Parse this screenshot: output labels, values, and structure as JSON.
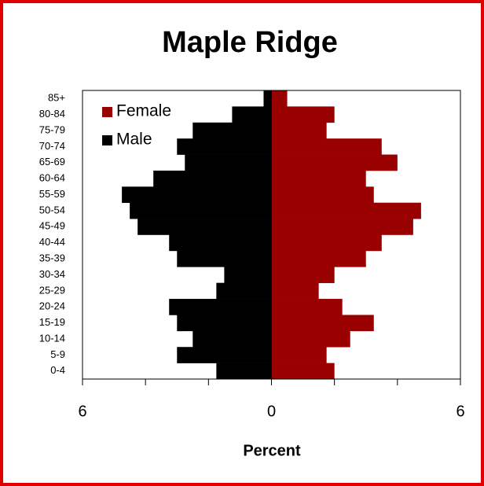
{
  "chart_data": {
    "type": "pyramid",
    "title": "Maple Ridge",
    "xlabel": "Percent",
    "categories": [
      "0-4",
      "5-9",
      "10-14",
      "15-19",
      "20-24",
      "25-29",
      "30-34",
      "35-39",
      "40-44",
      "45-49",
      "50-54",
      "55-59",
      "60-64",
      "65-69",
      "70-74",
      "75-79",
      "80-84",
      "85+"
    ],
    "series": [
      {
        "name": "Female",
        "color": "#990000",
        "side": "right",
        "values": [
          2.0,
          1.75,
          2.5,
          3.25,
          2.25,
          1.5,
          2.0,
          3.0,
          3.5,
          4.5,
          4.75,
          3.25,
          3.0,
          4.0,
          3.5,
          1.75,
          2.0,
          0.5
        ]
      },
      {
        "name": "Male",
        "color": "#000000",
        "side": "left",
        "values": [
          1.75,
          3.0,
          2.5,
          3.0,
          3.25,
          1.75,
          1.5,
          3.0,
          3.25,
          4.25,
          4.5,
          4.75,
          3.75,
          2.75,
          3.0,
          2.5,
          1.25,
          0.25
        ]
      }
    ],
    "xlim": [
      -6,
      6
    ],
    "xticks": [
      {
        "value": -6,
        "label": "6"
      },
      0,
      6
    ],
    "xminor_ticks": [
      -4,
      -2,
      2,
      4
    ],
    "legend": "upper left"
  }
}
